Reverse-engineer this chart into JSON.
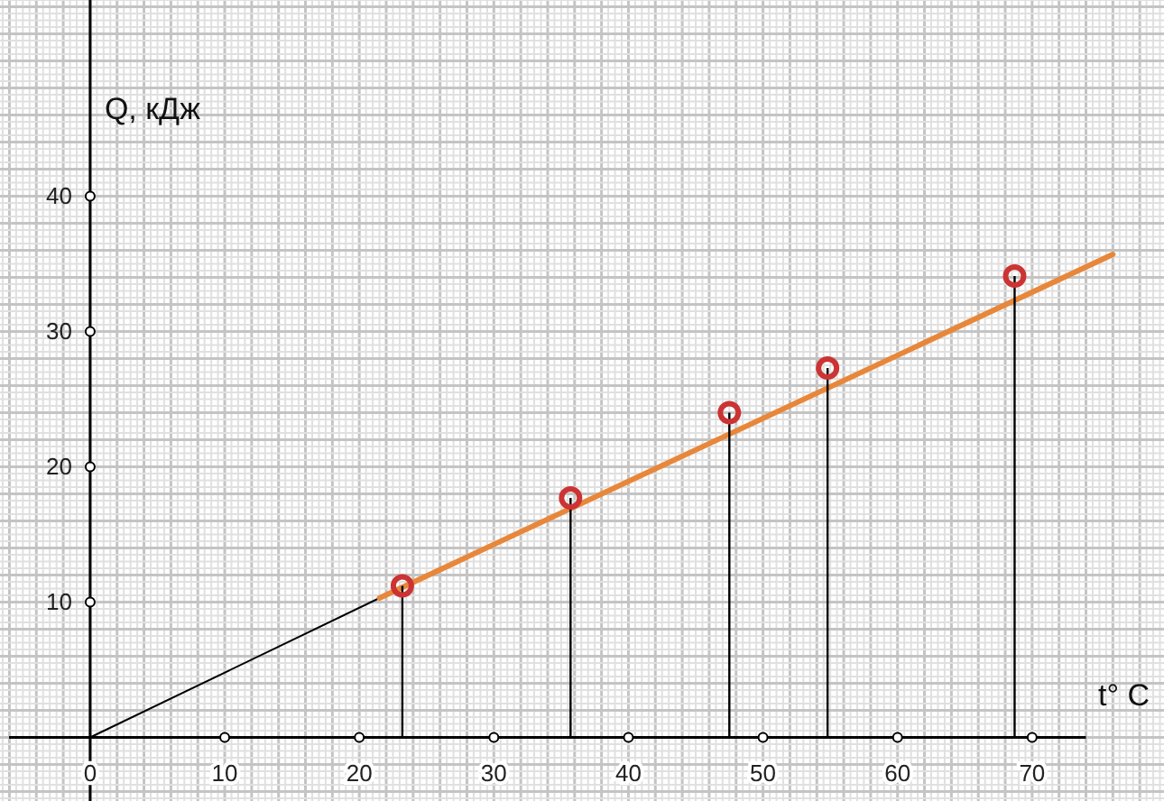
{
  "chart_data": {
    "type": "line",
    "xlabel": "t° C",
    "ylabel": "Q, кДж",
    "xlim": [
      -6.7,
      79.8
    ],
    "ylim": [
      -4.7,
      54.5
    ],
    "xticks": [
      0,
      10,
      20,
      30,
      40,
      50,
      60,
      70
    ],
    "yticks": [
      10,
      20,
      30,
      40
    ],
    "grid": true,
    "series": [
      {
        "color": "#000000",
        "x": [
          0,
          21.5
        ],
        "values": [
          0,
          10.3
        ],
        "marker": "none"
      },
      {
        "color": "#e8873a",
        "x": [
          21.5,
          76
        ],
        "values": [
          10.3,
          35.7
        ],
        "marker": "none"
      },
      {
        "type": "lollipop",
        "color": "#cc3333",
        "x": [
          23.2,
          35.7,
          47.5,
          54.8,
          68.7
        ],
        "values": [
          11.2,
          17.7,
          24,
          27.3,
          34.1
        ],
        "marker": "circle"
      }
    ]
  }
}
